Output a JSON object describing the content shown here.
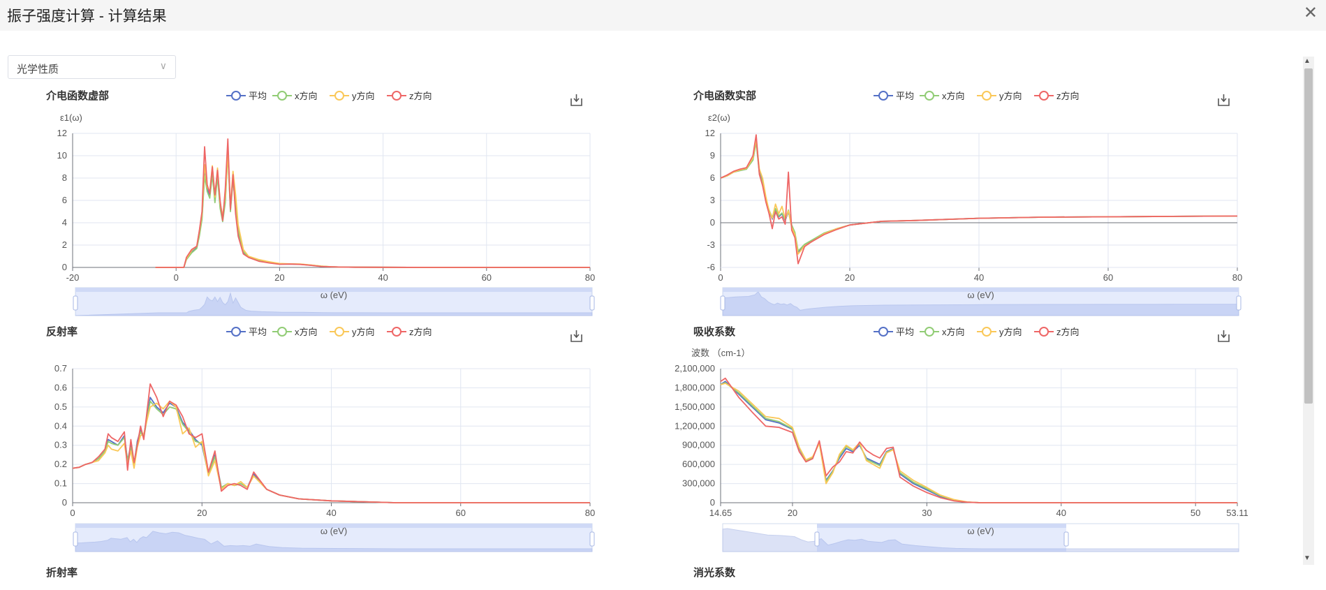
{
  "window": {
    "title": "振子强度计算 - 计算结果",
    "close_icon": "close-icon"
  },
  "select": {
    "value": "光学性质",
    "icon": "chevron-down-icon"
  },
  "toolbox_icon": "save-as-image-icon",
  "legend": {
    "items": [
      "平均",
      "x方向",
      "y方向",
      "z方向"
    ],
    "colors": [
      "#5470c6",
      "#91cc75",
      "#fac858",
      "#ee6666"
    ]
  },
  "partial_titles": [
    "折射率",
    "消光系数"
  ],
  "chart_data": [
    {
      "type": "line",
      "title": "介电函数虚部",
      "ylabel": "ε1(ω)",
      "xlabel": "ω (eV)",
      "xlim": [
        -20,
        80
      ],
      "ylim": [
        0,
        12
      ],
      "xticks": [
        -20,
        0,
        20,
        40,
        60,
        80
      ],
      "yticks": [
        0,
        2,
        4,
        6,
        8,
        10,
        12
      ],
      "xtick_labels": [
        "-20",
        "0",
        "20",
        "40",
        "60",
        "80"
      ],
      "ytick_labels": [
        "0",
        "2",
        "4",
        "6",
        "8",
        "10",
        "12"
      ],
      "x": [
        -4,
        0,
        1.5,
        2,
        3,
        4,
        4.5,
        5,
        5.5,
        6,
        6.5,
        7,
        7.5,
        8,
        8.5,
        9,
        9.5,
        10,
        10.5,
        11,
        11.5,
        12,
        13,
        14,
        16,
        18,
        20,
        22,
        24,
        26,
        28,
        30,
        32,
        35,
        40,
        50,
        80
      ],
      "series": [
        {
          "name": "平均",
          "values": [
            0,
            0,
            0,
            0.8,
            1.4,
            1.8,
            3,
            4.5,
            8.5,
            7,
            6.4,
            8.5,
            6,
            8.3,
            5.5,
            4.3,
            6,
            10.5,
            5.2,
            8,
            5.5,
            3,
            1.3,
            0.9,
            0.6,
            0.45,
            0.3,
            0.3,
            0.28,
            0.2,
            0.1,
            0.05,
            0.03,
            0.02,
            0.01,
            0,
            0
          ]
        },
        {
          "name": "x方向",
          "values": [
            0,
            0,
            0,
            0.7,
            1.3,
            1.7,
            2.8,
            4.3,
            8.2,
            6.8,
            6.2,
            8.3,
            5.8,
            8.1,
            5.3,
            4.1,
            5.8,
            10.2,
            5,
            7.8,
            5.6,
            3.3,
            1.4,
            0.95,
            0.65,
            0.5,
            0.32,
            0.31,
            0.29,
            0.21,
            0.11,
            0.05,
            0.03,
            0.02,
            0.01,
            0,
            0
          ]
        },
        {
          "name": "y方向",
          "values": [
            0,
            0,
            0,
            0.8,
            1.5,
            1.9,
            3.2,
            4.8,
            9.2,
            7.2,
            6.8,
            9.1,
            6.3,
            8.9,
            5.8,
            4.6,
            6.4,
            10.3,
            5.5,
            8.6,
            6.5,
            3.8,
            1.6,
            1,
            0.7,
            0.5,
            0.35,
            0.32,
            0.3,
            0.22,
            0.12,
            0.06,
            0.03,
            0.02,
            0.01,
            0,
            0
          ]
        },
        {
          "name": "z方向",
          "values": [
            0,
            0,
            0,
            0.9,
            1.6,
            1.9,
            3.3,
            5,
            10.8,
            7.4,
            6.6,
            9,
            6.5,
            8.7,
            6,
            4.2,
            7,
            11.5,
            5.2,
            8.3,
            4.8,
            2.8,
            1.2,
            0.9,
            0.55,
            0.4,
            0.28,
            0.3,
            0.27,
            0.19,
            0.09,
            0.05,
            0.03,
            0.02,
            0.01,
            0,
            0
          ]
        }
      ]
    },
    {
      "type": "line",
      "title": "介电函数实部",
      "ylabel": "ε2(ω)",
      "xlabel": "ω (eV)",
      "xlim": [
        0,
        80
      ],
      "ylim": [
        -6,
        12
      ],
      "xticks": [
        0,
        20,
        40,
        60,
        80
      ],
      "yticks": [
        -6,
        -3,
        0,
        3,
        6,
        9,
        12
      ],
      "xtick_labels": [
        "0",
        "20",
        "40",
        "60",
        "80"
      ],
      "ytick_labels": [
        "-6",
        "-3",
        "0",
        "3",
        "6",
        "9",
        "12"
      ],
      "x": [
        0,
        1,
        2,
        3,
        4,
        5,
        5.5,
        6,
        6.5,
        7,
        7.5,
        8,
        8.5,
        9,
        9.5,
        10,
        10.5,
        11,
        11.5,
        12,
        13,
        14,
        16,
        18,
        20,
        25,
        30,
        40,
        50,
        60,
        70,
        80
      ],
      "series": [
        {
          "name": "平均",
          "values": [
            6,
            6.3,
            6.8,
            7,
            7.2,
            8.5,
            11,
            6.8,
            5.5,
            3,
            1.5,
            0.5,
            1.8,
            0.8,
            1.2,
            0.3,
            1.5,
            -0.5,
            -1.5,
            -4,
            -3,
            -2.5,
            -1.5,
            -0.8,
            -0.3,
            0.2,
            0.3,
            0.6,
            0.75,
            0.8,
            0.85,
            0.9
          ]
        },
        {
          "name": "x方向",
          "values": [
            6,
            6.3,
            6.8,
            7,
            7.2,
            8.4,
            10.8,
            6.6,
            5.4,
            3.1,
            1.7,
            0.7,
            1.9,
            0.9,
            1.3,
            0.4,
            1.7,
            -0.3,
            -1.3,
            -3.8,
            -2.9,
            -2.4,
            -1.4,
            -0.8,
            -0.3,
            0.2,
            0.3,
            0.6,
            0.75,
            0.8,
            0.85,
            0.9
          ]
        },
        {
          "name": "y方向",
          "values": [
            6,
            6.3,
            6.8,
            7.1,
            7.3,
            8.7,
            11.2,
            7.2,
            6,
            3.5,
            1.6,
            0.6,
            2.5,
            1.2,
            2.2,
            0.5,
            1.6,
            -0.6,
            -1.6,
            -4.2,
            -3.1,
            -2.6,
            -1.5,
            -0.8,
            -0.3,
            0.2,
            0.3,
            0.6,
            0.75,
            0.8,
            0.85,
            0.9
          ]
        },
        {
          "name": "z方向",
          "values": [
            6,
            6.4,
            6.9,
            7.2,
            7.4,
            9,
            11.8,
            6.5,
            5,
            2.8,
            1.2,
            -0.8,
            1.5,
            0.5,
            0.8,
            -0.2,
            6.8,
            -1,
            -2,
            -5.5,
            -3.2,
            -2.6,
            -1.6,
            -0.9,
            -0.3,
            0.2,
            0.3,
            0.6,
            0.75,
            0.8,
            0.85,
            0.9
          ]
        }
      ]
    },
    {
      "type": "line",
      "title": "反射率",
      "ylabel": "",
      "xlabel": "ω (eV)",
      "xlim": [
        0,
        80
      ],
      "ylim": [
        0,
        0.7
      ],
      "xticks": [
        0,
        20,
        40,
        60,
        80
      ],
      "yticks": [
        0,
        0.1,
        0.2,
        0.3,
        0.4,
        0.5,
        0.6,
        0.7
      ],
      "xtick_labels": [
        "0",
        "20",
        "40",
        "60",
        "80"
      ],
      "ytick_labels": [
        "0",
        "0.1",
        "0.2",
        "0.3",
        "0.4",
        "0.5",
        "0.6",
        "0.7"
      ],
      "x": [
        0,
        1,
        2,
        3,
        4,
        5,
        5.5,
        6,
        7,
        8,
        8.5,
        9,
        9.5,
        10,
        10.5,
        11,
        12,
        13,
        14,
        15,
        16,
        17,
        18,
        19,
        20,
        21,
        22,
        23,
        24,
        25,
        26,
        27,
        28,
        30,
        32,
        35,
        40,
        50,
        60,
        80
      ],
      "series": [
        {
          "name": "平均",
          "values": [
            0.18,
            0.185,
            0.2,
            0.21,
            0.23,
            0.27,
            0.33,
            0.32,
            0.3,
            0.35,
            0.22,
            0.3,
            0.2,
            0.32,
            0.38,
            0.35,
            0.55,
            0.5,
            0.47,
            0.52,
            0.5,
            0.42,
            0.38,
            0.33,
            0.3,
            0.15,
            0.25,
            0.08,
            0.1,
            0.09,
            0.1,
            0.08,
            0.15,
            0.07,
            0.04,
            0.02,
            0.01,
            0,
            0,
            0
          ]
        },
        {
          "name": "x方向",
          "values": [
            0.18,
            0.185,
            0.2,
            0.21,
            0.23,
            0.27,
            0.32,
            0.31,
            0.3,
            0.34,
            0.22,
            0.29,
            0.2,
            0.31,
            0.37,
            0.34,
            0.53,
            0.49,
            0.46,
            0.5,
            0.49,
            0.41,
            0.37,
            0.32,
            0.31,
            0.15,
            0.24,
            0.08,
            0.1,
            0.09,
            0.1,
            0.08,
            0.14,
            0.07,
            0.04,
            0.02,
            0.01,
            0,
            0,
            0
          ]
        },
        {
          "name": "y方向",
          "values": [
            0.18,
            0.185,
            0.2,
            0.21,
            0.22,
            0.26,
            0.3,
            0.28,
            0.27,
            0.31,
            0.2,
            0.27,
            0.18,
            0.29,
            0.35,
            0.36,
            0.5,
            0.52,
            0.49,
            0.53,
            0.5,
            0.36,
            0.39,
            0.29,
            0.32,
            0.14,
            0.22,
            0.07,
            0.1,
            0.09,
            0.11,
            0.08,
            0.14,
            0.07,
            0.04,
            0.02,
            0.01,
            0,
            0,
            0
          ]
        },
        {
          "name": "z方向",
          "values": [
            0.18,
            0.185,
            0.2,
            0.21,
            0.24,
            0.28,
            0.36,
            0.34,
            0.32,
            0.37,
            0.17,
            0.33,
            0.21,
            0.3,
            0.4,
            0.33,
            0.62,
            0.55,
            0.45,
            0.53,
            0.51,
            0.45,
            0.36,
            0.34,
            0.36,
            0.16,
            0.27,
            0.06,
            0.09,
            0.1,
            0.09,
            0.07,
            0.16,
            0.07,
            0.04,
            0.02,
            0.01,
            0,
            0,
            0
          ]
        }
      ]
    },
    {
      "type": "line",
      "title": "吸收系数",
      "ylabel": "波数 （cm-1）",
      "xlabel": "ω (eV)",
      "xlim": [
        14.65,
        53.11
      ],
      "ylim": [
        0,
        2100000
      ],
      "xticks": [
        14.65,
        20,
        30,
        40,
        50,
        53.11
      ],
      "yticks": [
        0,
        300000,
        600000,
        900000,
        1200000,
        1500000,
        1800000,
        2100000
      ],
      "xtick_labels": [
        "14.65",
        "20",
        "30",
        "40",
        "50",
        "53.11"
      ],
      "ytick_labels": [
        "0",
        "300,000",
        "600,000",
        "900,000",
        "1,200,000",
        "1,500,000",
        "1,800,000",
        "2,100,000"
      ],
      "x": [
        14.65,
        15,
        16,
        17,
        18,
        19,
        20,
        20.5,
        21,
        21.5,
        22,
        22.5,
        23,
        23.5,
        24,
        24.5,
        25,
        25.5,
        26,
        26.5,
        27,
        27.5,
        28,
        29,
        30,
        31,
        32,
        33,
        34,
        35,
        40,
        45,
        53.11
      ],
      "series": [
        {
          "name": "平均",
          "values": [
            1850000,
            1900000,
            1700000,
            1500000,
            1300000,
            1250000,
            1150000,
            850000,
            650000,
            700000,
            950000,
            350000,
            500000,
            700000,
            850000,
            800000,
            900000,
            700000,
            650000,
            600000,
            800000,
            850000,
            450000,
            300000,
            200000,
            100000,
            40000,
            10000,
            0,
            0,
            0,
            0,
            0
          ]
        },
        {
          "name": "x方向",
          "values": [
            1850000,
            1880000,
            1720000,
            1520000,
            1320000,
            1270000,
            1160000,
            860000,
            660000,
            710000,
            940000,
            330000,
            490000,
            730000,
            880000,
            820000,
            920000,
            680000,
            630000,
            580000,
            790000,
            840000,
            470000,
            320000,
            220000,
            110000,
            45000,
            10000,
            0,
            0,
            0,
            0,
            0
          ]
        },
        {
          "name": "y方向",
          "values": [
            1850000,
            1870000,
            1750000,
            1550000,
            1350000,
            1320000,
            1180000,
            870000,
            670000,
            720000,
            930000,
            300000,
            470000,
            760000,
            900000,
            830000,
            940000,
            660000,
            600000,
            540000,
            780000,
            830000,
            500000,
            350000,
            240000,
            120000,
            50000,
            12000,
            0,
            0,
            0,
            0,
            0
          ]
        },
        {
          "name": "z方向",
          "values": [
            1900000,
            1950000,
            1650000,
            1420000,
            1200000,
            1180000,
            1100000,
            800000,
            640000,
            690000,
            970000,
            420000,
            560000,
            640000,
            800000,
            780000,
            950000,
            820000,
            750000,
            700000,
            850000,
            870000,
            400000,
            260000,
            160000,
            80000,
            30000,
            8000,
            0,
            0,
            0,
            0,
            0
          ]
        }
      ]
    }
  ]
}
